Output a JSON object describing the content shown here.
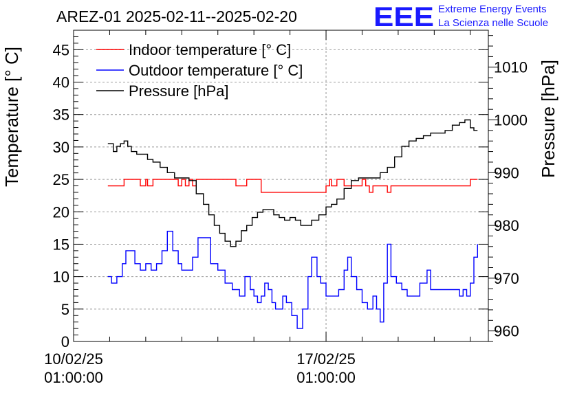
{
  "chart_data": {
    "type": "line",
    "title": "AREZ-01 2025-02-11--2025-02-20",
    "ylabel": "Temperature [° C]",
    "y2label": "Pressure [hPa]",
    "x_tick_labels": [
      {
        "date": "10/02/25",
        "time": "01:00:00",
        "day": 0
      },
      {
        "date": "17/02/25",
        "time": "01:00:00",
        "day": 7
      }
    ],
    "xlim_days": [
      0,
      11.5
    ],
    "ylim": [
      0,
      48
    ],
    "y_ticks": [
      0,
      5,
      10,
      15,
      20,
      25,
      30,
      35,
      40,
      45
    ],
    "y2lim": [
      958,
      1017
    ],
    "y2_ticks": [
      960,
      970,
      980,
      990,
      1000,
      1010
    ],
    "grid": true,
    "legend_position": "top-left",
    "logo": {
      "mark": "EEE",
      "line1": "Extreme Energy Events",
      "line2": "La Scienza nelle Scuole"
    },
    "series": [
      {
        "name": "Indoor temperature [° C]",
        "axis": "left",
        "color": "#ff0000",
        "x": [
          0.95,
          1.35,
          1.4,
          1.8,
          1.85,
          2.0,
          2.05,
          2.2,
          2.25,
          2.8,
          2.9,
          3.0,
          3.1,
          3.2,
          3.3,
          3.4,
          4.0,
          4.2,
          4.5,
          4.8,
          5.0,
          5.2,
          5.3,
          5.5,
          6.0,
          6.5,
          6.9,
          7.0,
          7.1,
          7.15,
          7.3,
          7.5,
          7.8,
          8.0,
          8.1,
          8.2,
          8.3,
          8.6,
          8.7,
          8.8,
          9.0,
          10.0,
          10.5,
          10.6,
          11.0,
          11.2
        ],
        "y": [
          24,
          24,
          25,
          25,
          24,
          25,
          24,
          25,
          25,
          25,
          24,
          25,
          24,
          25,
          24,
          25,
          25,
          25,
          24,
          25,
          25,
          23,
          23,
          23,
          23,
          23,
          23,
          24,
          25,
          24,
          25,
          24,
          24,
          25,
          24,
          23,
          24,
          24,
          23,
          24,
          24,
          24,
          24,
          24,
          25,
          25
        ]
      },
      {
        "name": "Outdoor temperature [° C]",
        "axis": "left",
        "color": "#0000ff",
        "x": [
          0.95,
          1.05,
          1.2,
          1.35,
          1.45,
          1.6,
          1.7,
          1.85,
          2.0,
          2.15,
          2.3,
          2.45,
          2.6,
          2.75,
          2.9,
          3.0,
          3.15,
          3.3,
          3.45,
          3.6,
          3.8,
          4.0,
          4.2,
          4.4,
          4.6,
          4.75,
          4.9,
          5.0,
          5.1,
          5.2,
          5.3,
          5.4,
          5.5,
          5.6,
          5.7,
          5.8,
          5.9,
          6.05,
          6.2,
          6.35,
          6.5,
          6.6,
          6.75,
          6.85,
          7.0,
          7.1,
          7.2,
          7.35,
          7.5,
          7.6,
          7.7,
          7.85,
          8.0,
          8.15,
          8.3,
          8.4,
          8.5,
          8.6,
          8.7,
          8.8,
          8.95,
          9.1,
          9.25,
          9.4,
          9.6,
          9.8,
          9.9,
          10.05,
          10.2,
          10.35,
          10.5,
          10.6,
          10.7,
          10.8,
          10.9,
          11.0,
          11.1,
          11.2
        ],
        "y": [
          10,
          9,
          10,
          12,
          14,
          14,
          12,
          11,
          12,
          11,
          12,
          14,
          17,
          14,
          12,
          11,
          11,
          13,
          16,
          16,
          12,
          11,
          9,
          8,
          7,
          10,
          8,
          7,
          6,
          7,
          9,
          8,
          6,
          5,
          5,
          7,
          6,
          4,
          2,
          5,
          10,
          13,
          10,
          9,
          7,
          7,
          7,
          8,
          11,
          13,
          10,
          8,
          6,
          5,
          7,
          5,
          3,
          9,
          15,
          10,
          9,
          8,
          7,
          7,
          9,
          11,
          8,
          8,
          8,
          8,
          8,
          8,
          7,
          8,
          7,
          9,
          13,
          15
        ]
      },
      {
        "name": "Pressure [hPa]",
        "axis": "right",
        "color": "#000000",
        "x": [
          0.95,
          1.1,
          1.2,
          1.3,
          1.4,
          1.5,
          1.6,
          1.75,
          1.9,
          2.05,
          2.2,
          2.4,
          2.6,
          2.8,
          3.0,
          3.2,
          3.4,
          3.6,
          3.75,
          3.9,
          4.05,
          4.2,
          4.35,
          4.5,
          4.65,
          4.8,
          4.95,
          5.1,
          5.25,
          5.4,
          5.55,
          5.7,
          5.85,
          6.0,
          6.15,
          6.3,
          6.45,
          6.6,
          6.8,
          7.0,
          7.15,
          7.3,
          7.5,
          7.7,
          7.9,
          8.1,
          8.3,
          8.5,
          8.7,
          8.9,
          9.1,
          9.3,
          9.5,
          9.7,
          9.9,
          10.1,
          10.3,
          10.5,
          10.7,
          10.85,
          11.0,
          11.1,
          11.2
        ],
        "y": [
          995.5,
          994,
          995,
          995.5,
          996,
          995,
          994,
          993.5,
          993.5,
          992.5,
          992,
          991,
          990,
          989,
          989,
          988.5,
          986,
          984,
          982,
          980,
          978.5,
          977,
          976,
          977,
          979,
          980,
          981.5,
          982.5,
          983,
          983,
          982,
          981.5,
          981,
          981.5,
          981,
          980,
          980,
          981,
          982,
          983.5,
          984,
          985,
          987,
          988.5,
          989,
          989,
          989,
          990,
          991,
          993,
          995,
          996,
          996.5,
          997,
          997.5,
          997.5,
          998,
          999,
          999.5,
          1000,
          998.5,
          998,
          998
        ]
      }
    ]
  }
}
